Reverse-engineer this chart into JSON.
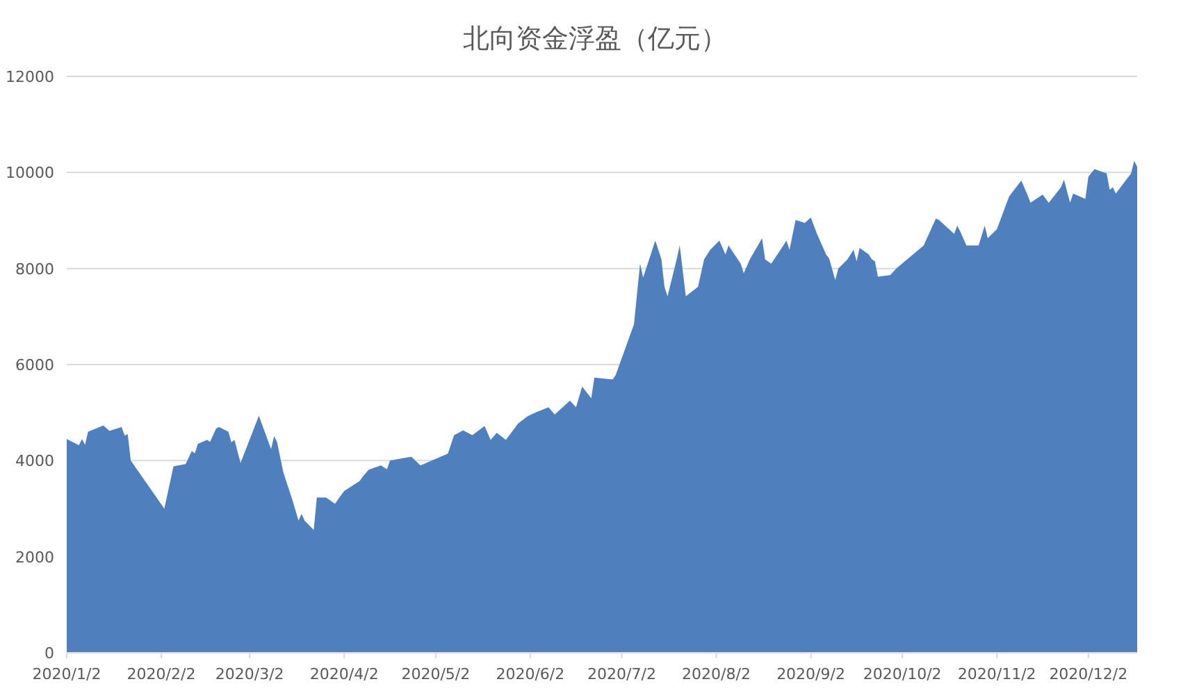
{
  "chart_data": {
    "type": "area",
    "title": "北向资金浮盈（亿元）",
    "color": "#4f7fbc",
    "grid": "y",
    "xlim": [
      "2020-01-02",
      "2020-12-18"
    ],
    "xticks": [
      {
        "value": "2020-01-02",
        "label": "2020/1/2"
      },
      {
        "value": "2020-02-02",
        "label": "2020/2/2"
      },
      {
        "value": "2020-03-02",
        "label": "2020/3/2"
      },
      {
        "value": "2020-04-02",
        "label": "2020/4/2"
      },
      {
        "value": "2020-05-02",
        "label": "2020/5/2"
      },
      {
        "value": "2020-06-02",
        "label": "2020/6/2"
      },
      {
        "value": "2020-07-02",
        "label": "2020/7/2"
      },
      {
        "value": "2020-08-02",
        "label": "2020/8/2"
      },
      {
        "value": "2020-09-02",
        "label": "2020/9/2"
      },
      {
        "value": "2020-10-02",
        "label": "2020/10/2"
      },
      {
        "value": "2020-11-02",
        "label": "2020/11/2"
      },
      {
        "value": "2020-12-02",
        "label": "2020/12/2"
      }
    ],
    "ylim": [
      0,
      12000
    ],
    "yticks": [
      0,
      2000,
      4000,
      6000,
      8000,
      10000,
      12000
    ],
    "x": [
      "2020-01-02",
      "2020-01-06",
      "2020-01-07",
      "2020-01-08",
      "2020-01-09",
      "2020-01-14",
      "2020-01-16",
      "2020-01-20",
      "2020-01-21",
      "2020-01-22",
      "2020-01-23",
      "2020-02-03",
      "2020-02-06",
      "2020-02-10",
      "2020-02-12",
      "2020-02-13",
      "2020-02-14",
      "2020-02-17",
      "2020-02-18",
      "2020-02-20",
      "2020-02-21",
      "2020-02-24",
      "2020-02-25",
      "2020-02-26",
      "2020-02-28",
      "2020-03-05",
      "2020-03-09",
      "2020-03-10",
      "2020-03-11",
      "2020-03-13",
      "2020-03-16",
      "2020-03-18",
      "2020-03-19",
      "2020-03-20",
      "2020-03-23",
      "2020-03-24",
      "2020-03-27",
      "2020-03-30",
      "2020-03-31",
      "2020-04-02",
      "2020-04-07",
      "2020-04-08",
      "2020-04-10",
      "2020-04-14",
      "2020-04-16",
      "2020-04-17",
      "2020-04-21",
      "2020-04-24",
      "2020-04-27",
      "2020-05-06",
      "2020-05-08",
      "2020-05-11",
      "2020-05-14",
      "2020-05-18",
      "2020-05-20",
      "2020-05-22",
      "2020-05-25",
      "2020-05-29",
      "2020-06-01",
      "2020-06-04",
      "2020-06-08",
      "2020-06-10",
      "2020-06-15",
      "2020-06-17",
      "2020-06-19",
      "2020-06-22",
      "2020-06-23",
      "2020-06-29",
      "2020-06-30",
      "2020-07-06",
      "2020-07-08",
      "2020-07-09",
      "2020-07-13",
      "2020-07-15",
      "2020-07-16",
      "2020-07-17",
      "2020-07-20",
      "2020-07-21",
      "2020-07-23",
      "2020-07-24",
      "2020-07-27",
      "2020-07-29",
      "2020-07-31",
      "2020-08-03",
      "2020-08-05",
      "2020-08-06",
      "2020-08-10",
      "2020-08-11",
      "2020-08-13",
      "2020-08-17",
      "2020-08-18",
      "2020-08-20",
      "2020-08-24",
      "2020-08-25",
      "2020-08-26",
      "2020-08-28",
      "2020-08-31",
      "2020-09-02",
      "2020-09-04",
      "2020-09-07",
      "2020-09-08",
      "2020-09-10",
      "2020-09-11",
      "2020-09-14",
      "2020-09-16",
      "2020-09-17",
      "2020-09-18",
      "2020-09-21",
      "2020-09-22",
      "2020-09-23",
      "2020-09-24",
      "2020-09-28",
      "2020-09-30",
      "2020-10-09",
      "2020-10-13",
      "2020-10-14",
      "2020-10-19",
      "2020-10-20",
      "2020-10-21",
      "2020-10-23",
      "2020-10-27",
      "2020-10-29",
      "2020-10-30",
      "2020-11-02",
      "2020-11-06",
      "2020-11-10",
      "2020-11-12",
      "2020-11-13",
      "2020-11-17",
      "2020-11-19",
      "2020-11-23",
      "2020-11-24",
      "2020-11-26",
      "2020-11-27",
      "2020-12-01",
      "2020-12-02",
      "2020-12-04",
      "2020-12-08",
      "2020-12-09",
      "2020-12-10",
      "2020-12-11",
      "2020-12-16",
      "2020-12-17",
      "2020-12-18"
    ],
    "values": [
      4450,
      4320,
      4450,
      4330,
      4600,
      4730,
      4620,
      4700,
      4520,
      4550,
      4000,
      3000,
      3880,
      3930,
      4200,
      4150,
      4350,
      4430,
      4390,
      4670,
      4700,
      4600,
      4380,
      4430,
      3950,
      4935,
      4240,
      4510,
      4380,
      3760,
      3180,
      2750,
      2890,
      2750,
      2555,
      3230,
      3230,
      3100,
      3200,
      3370,
      3570,
      3660,
      3810,
      3900,
      3820,
      4000,
      4050,
      4080,
      3900,
      4145,
      4530,
      4630,
      4530,
      4720,
      4430,
      4580,
      4430,
      4770,
      4920,
      5010,
      5110,
      4960,
      5250,
      5110,
      5540,
      5300,
      5730,
      5690,
      5780,
      6840,
      8100,
      7810,
      8580,
      8190,
      7620,
      7420,
      8190,
      8480,
      7420,
      7470,
      7620,
      8190,
      8390,
      8580,
      8290,
      8480,
      8100,
      7900,
      8190,
      8630,
      8190,
      8100,
      8480,
      8580,
      8390,
      9010,
      8950,
      9060,
      8720,
      8290,
      8210,
      7760,
      8000,
      8190,
      8390,
      8150,
      8430,
      8290,
      8190,
      8150,
      7830,
      7860,
      8000,
      8480,
      9040,
      9010,
      8720,
      8890,
      8770,
      8480,
      8480,
      8890,
      8630,
      8820,
      9500,
      9830,
      9540,
      9370,
      9540,
      9370,
      9690,
      9850,
      9370,
      9560,
      9450,
      9910,
      10070,
      9980,
      9640,
      9690,
      9560,
      9980,
      10240,
      10120
    ]
  }
}
